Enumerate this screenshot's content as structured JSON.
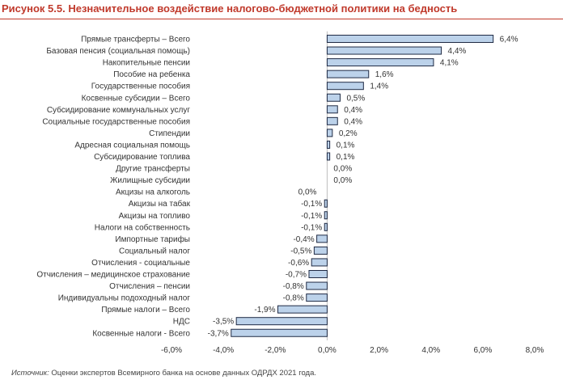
{
  "title": "Рисунок 5.5. Незначительное воздействие налогово-бюджетной политики на бедность",
  "source": {
    "label": "Источник:",
    "text": " Оценки экспертов Всемирного банка на основе данных ОДРДХ 2021 года."
  },
  "colors": {
    "title": "#c0392b",
    "bar_fill": "#bcd2ea",
    "bar_stroke": "#1f2a44"
  },
  "chart_data": {
    "type": "bar",
    "orientation": "horizontal",
    "categories": [
      "Прямые трансферты – Всего",
      "Базовая пенсия (социальная помощь)",
      "Накопительные пенсии",
      "Пособие на ребенка",
      "Государственные пособия",
      "Косвенные субсидии – Всего",
      "Субсидирование коммунальных услуг",
      "Социальные государственные пособия",
      "Стипендии",
      "Адресная социальная помощь",
      "Субсидирование топлива",
      "Другие трансферты",
      "Жилищные субсидии",
      "Акцизы на алкоголь",
      "Акцизы на табак",
      "Акцизы на топливо",
      "Налоги на собственность",
      "Импортные тарифы",
      "Социальный налог",
      "Отчисления - социальные",
      "Отчисления – медицинское страхование",
      "Отчисления – пенсии",
      "Индивидуальны подоходный налог",
      "Прямые налоги – Всего",
      "НДС",
      "Косвенные налоги - Всего"
    ],
    "values": [
      6.4,
      4.4,
      4.1,
      1.6,
      1.4,
      0.5,
      0.4,
      0.4,
      0.2,
      0.1,
      0.1,
      0.0,
      0.0,
      0.0,
      -0.1,
      -0.1,
      -0.1,
      -0.4,
      -0.5,
      -0.6,
      -0.7,
      -0.8,
      -0.8,
      -1.9,
      -3.5,
      -3.7
    ],
    "value_labels": [
      "6,4%",
      "4,4%",
      "4,1%",
      "1,6%",
      "1,4%",
      "0,5%",
      "0,4%",
      "0,4%",
      "0,2%",
      "0,1%",
      "0,1%",
      "0,0%",
      "0,0%",
      "0,0%",
      "-0,1%",
      "-0,1%",
      "-0,1%",
      "-0,4%",
      "-0,5%",
      "-0,6%",
      "-0,7%",
      "-0,8%",
      "-0,8%",
      "-1,9%",
      "-3,5%",
      "-3,7%"
    ],
    "xlim": [
      -6.0,
      8.0
    ],
    "xticks": [
      -6,
      -4,
      -2,
      0,
      2,
      4,
      6,
      8
    ],
    "xtick_labels": [
      "-6,0%",
      "-4,0%",
      "-2,0%",
      "0,0%",
      "2,0%",
      "4,0%",
      "6,0%",
      "8,0%"
    ],
    "grid": false,
    "legend": false
  }
}
